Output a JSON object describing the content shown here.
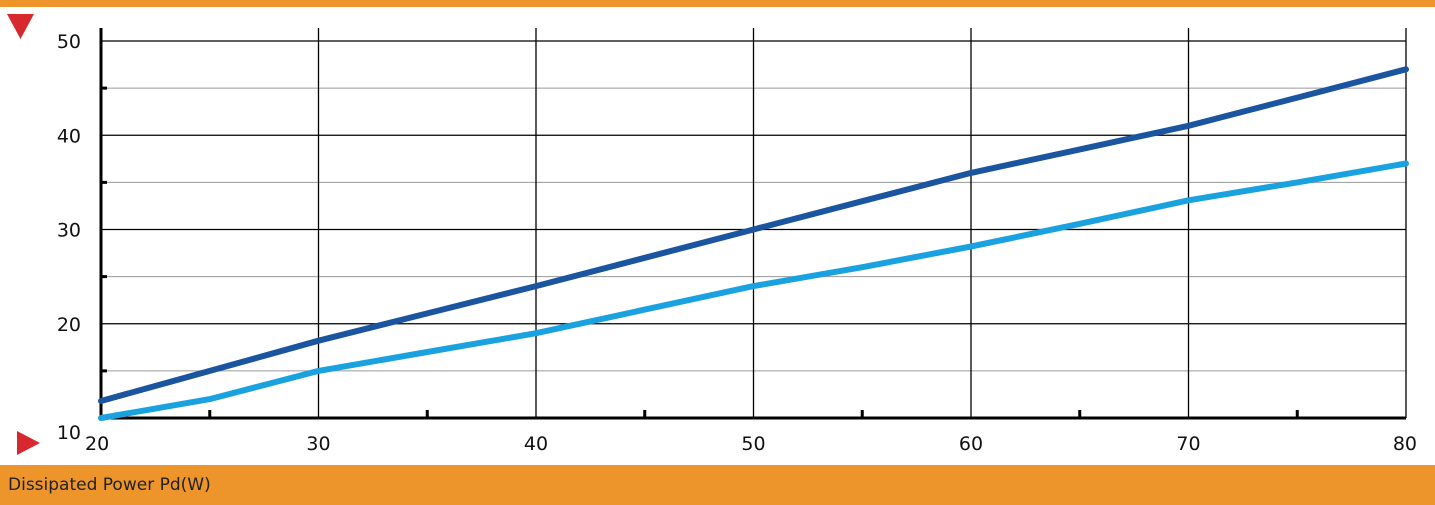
{
  "theme": {
    "band_color": "#ED952A",
    "marker_color": "#D7282F",
    "grid_major_color": "#000000",
    "grid_minor_color": "#9A9A9A"
  },
  "footer": {
    "xlabel": "Dissipated Power Pd(W)"
  },
  "chart_data": {
    "type": "line",
    "title": "",
    "xlabel": "Dissipated Power Pd(W)",
    "ylabel": "",
    "xlim": [
      20,
      80
    ],
    "ylim": [
      10,
      50
    ],
    "x_ticks": [
      20,
      30,
      40,
      50,
      60,
      70,
      80
    ],
    "y_ticks": [
      10,
      20,
      30,
      40,
      50
    ],
    "grid": true,
    "legend": "none",
    "series": [
      {
        "color": "#1B55A0",
        "x": [
          20,
          25,
          30,
          35,
          40,
          45,
          50,
          55,
          60,
          65,
          70,
          75,
          80
        ],
        "y": [
          11.8,
          15,
          18.2,
          21.1,
          24,
          27,
          30,
          33,
          36,
          38.5,
          41,
          44,
          47
        ]
      },
      {
        "color": "#1AA2E0",
        "x": [
          20,
          25,
          30,
          35,
          40,
          45,
          50,
          55,
          60,
          65,
          70,
          75,
          80
        ],
        "y": [
          10,
          12,
          15,
          17,
          19,
          21.5,
          24,
          26,
          28.2,
          30.6,
          33.1,
          35,
          37
        ]
      }
    ]
  }
}
